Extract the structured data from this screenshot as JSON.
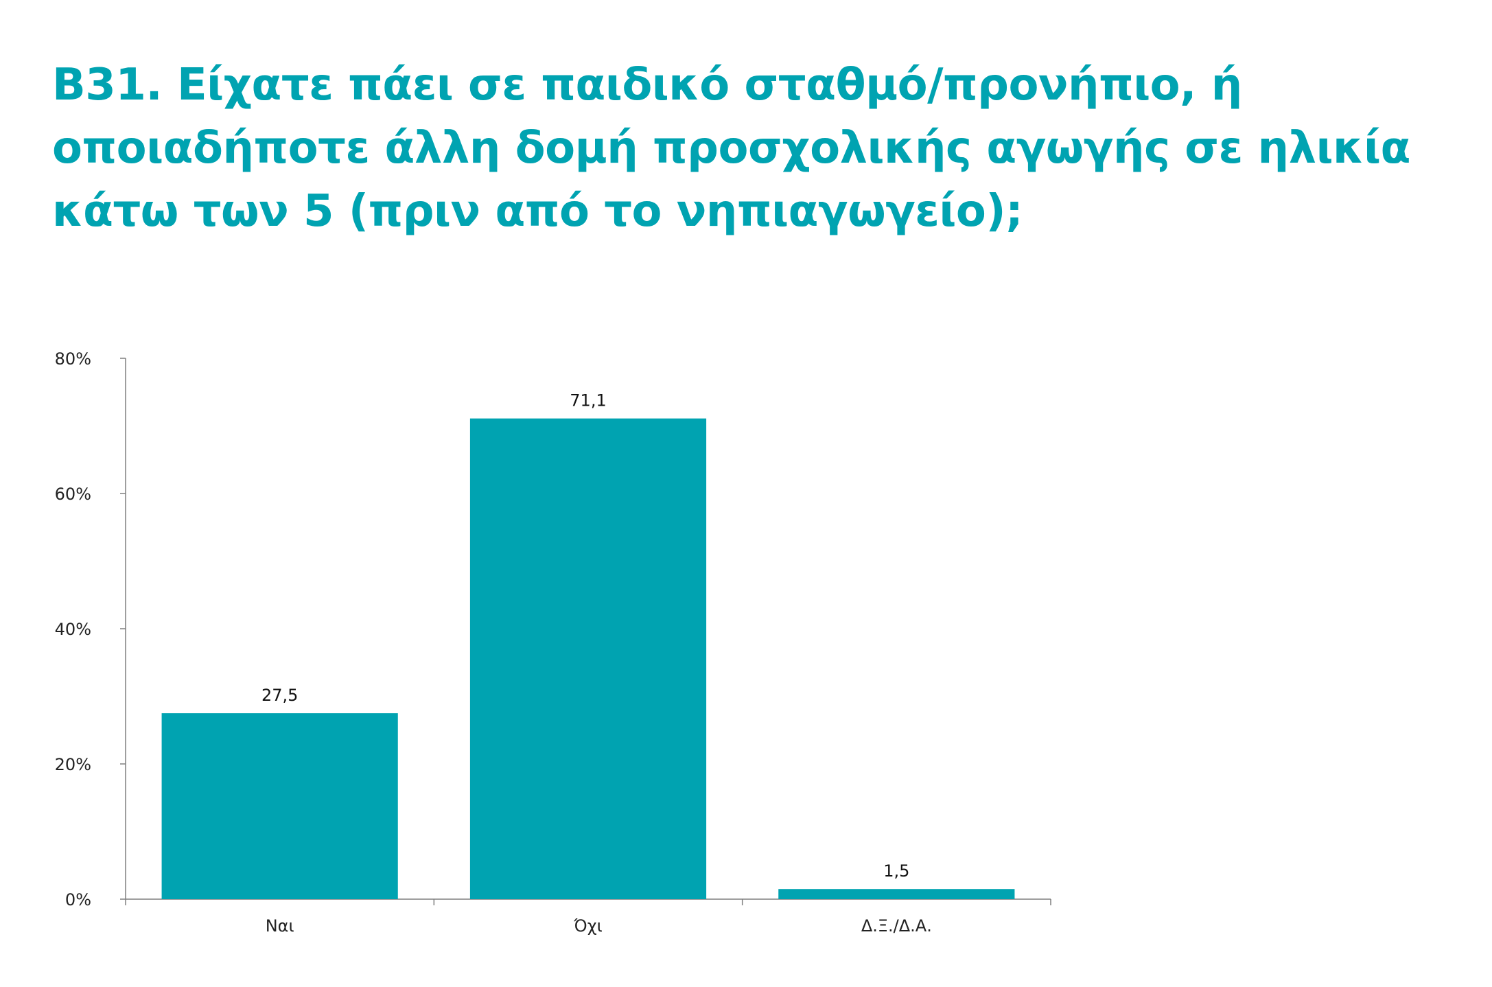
{
  "title": "B31. Είχατε πάει σε παιδικό σταθμό/προνήπιο, ή οποιαδήποτε άλλη δομή προσχολικής αγωγής σε ηλικία κάτω των 5 (πριν από το νηπιαγωγείο);",
  "chart_data": {
    "type": "bar",
    "categories": [
      "Ναι",
      "Όχι",
      "Δ.Ξ./Δ.Α."
    ],
    "values": [
      27.5,
      71.1,
      1.5
    ],
    "value_labels": [
      "27,5",
      "71,1",
      "1,5"
    ],
    "ylim": [
      0,
      80
    ],
    "yticks": [
      0,
      20,
      40,
      60,
      80
    ],
    "ytick_labels": [
      "0%",
      "20%",
      "40%",
      "60%",
      "80%"
    ],
    "xlabel": "",
    "ylabel": "",
    "grid": false,
    "legend": "none",
    "bar_color": "#00a3b1",
    "axis_color": "#7f7f7f",
    "title_color": "#00a3b1"
  }
}
